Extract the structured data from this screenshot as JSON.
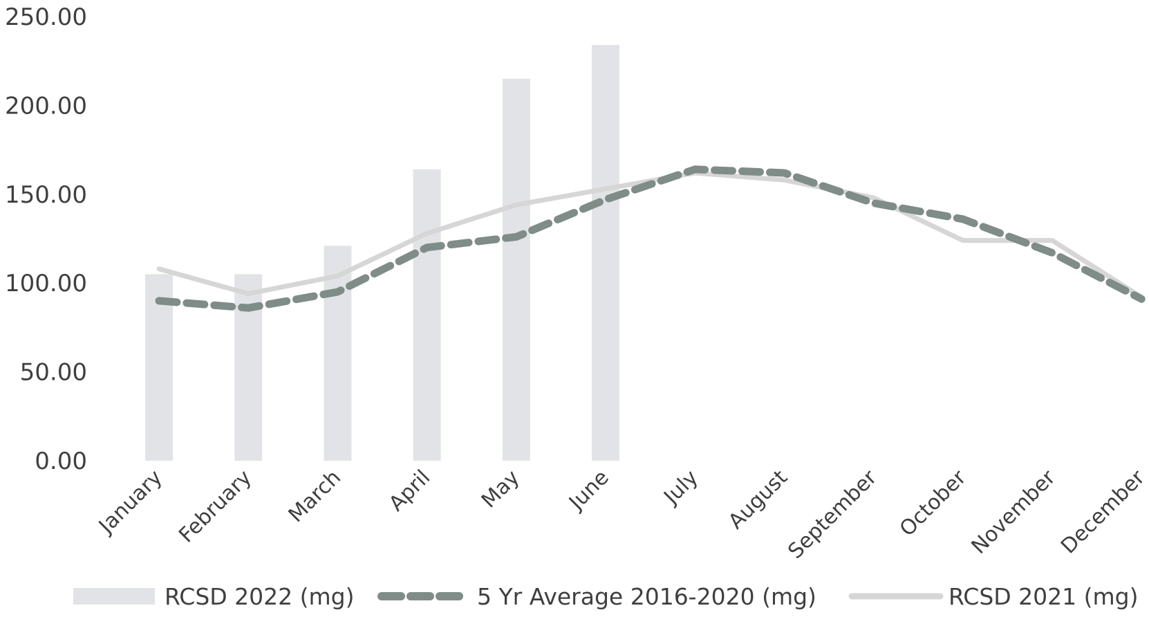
{
  "chart_data": {
    "type": "bar",
    "categories": [
      "January",
      "February",
      "March",
      "April",
      "May",
      "June",
      "July",
      "August",
      "September",
      "October",
      "November",
      "December"
    ],
    "y_ticks": [
      "0.00",
      "50.00",
      "100.00",
      "150.00",
      "200.00",
      "250.00"
    ],
    "ylim": [
      0,
      250
    ],
    "grid": false,
    "legend_position": "bottom",
    "series": [
      {
        "name": "RCSD 2022 (mg)",
        "kind": "bar",
        "color": "#e2e3e6",
        "values": [
          105,
          105,
          121,
          164,
          215,
          234,
          null,
          null,
          null,
          null,
          null,
          null
        ]
      },
      {
        "name": "5 Yr Average 2016-2020 (mg)",
        "kind": "line-dashed",
        "color": "#7f8c87",
        "values": [
          90,
          86,
          95,
          120,
          126,
          147,
          164,
          162,
          145,
          136,
          117,
          91
        ]
      },
      {
        "name": "RCSD 2021 (mg)",
        "kind": "line",
        "color": "#d6d6d6",
        "values": [
          108,
          94,
          104,
          128,
          144,
          153,
          162,
          158,
          148,
          124,
          124,
          92
        ]
      }
    ]
  }
}
